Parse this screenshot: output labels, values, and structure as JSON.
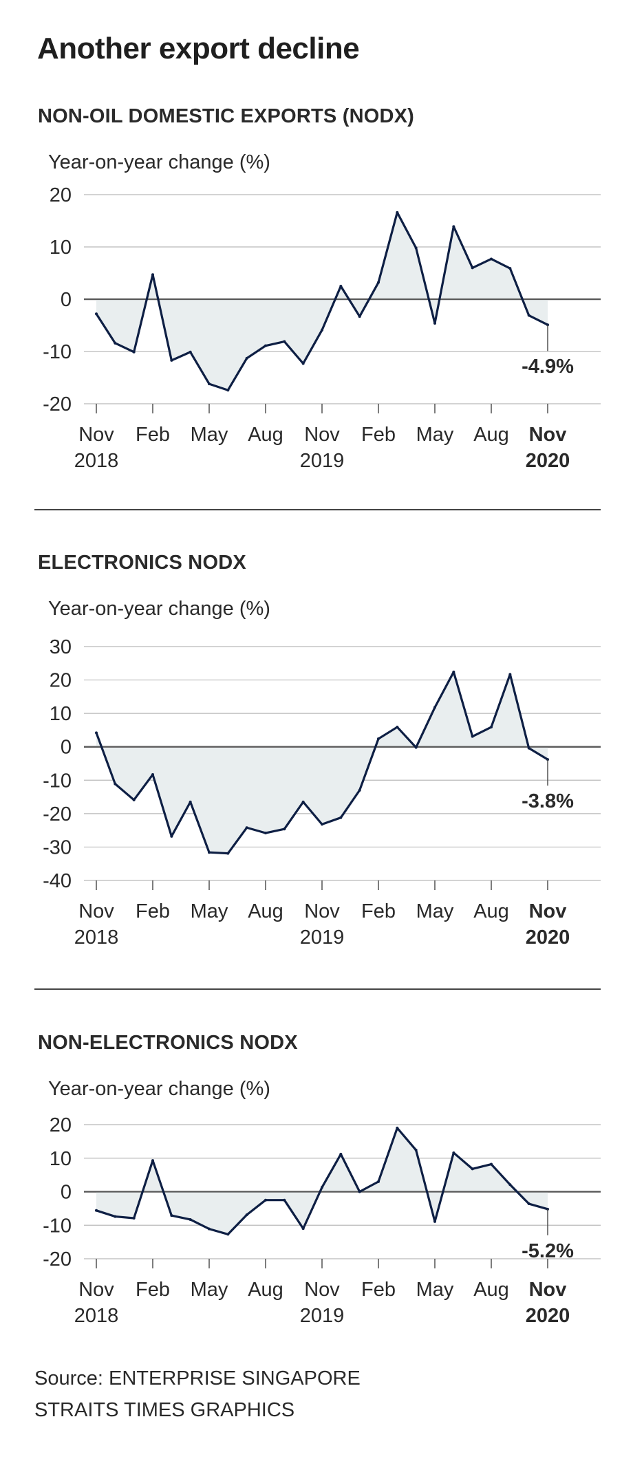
{
  "title": "Another export decline",
  "source_line1": "Source: ENTERPRISE SINGAPORE",
  "source_line2": "STRAITS TIMES GRAPHICS",
  "colors": {
    "line": "#0e1f44",
    "fill": "#e9eeef",
    "grid": "#b9b9b9",
    "zero": "#5a5a5a"
  },
  "chart_data": [
    {
      "type": "area",
      "title": "NON-OIL DOMESTIC EXPORTS (NODX)",
      "ylabel": "Year-on-year change (%)",
      "ylim": [
        -20,
        20
      ],
      "yticks": [
        20,
        10,
        0,
        -10,
        -20
      ],
      "xticks": [
        {
          "month": "Nov",
          "year": "2018",
          "bold": false
        },
        {
          "month": "Feb",
          "year": "",
          "bold": false
        },
        {
          "month": "May",
          "year": "",
          "bold": false
        },
        {
          "month": "Aug",
          "year": "",
          "bold": false
        },
        {
          "month": "Nov",
          "year": "2019",
          "bold": false
        },
        {
          "month": "Feb",
          "year": "",
          "bold": false
        },
        {
          "month": "May",
          "year": "",
          "bold": false
        },
        {
          "month": "Aug",
          "year": "",
          "bold": false
        },
        {
          "month": "Nov",
          "year": "2020",
          "bold": true
        }
      ],
      "x": [
        "Nov 2018",
        "Dec 2018",
        "Jan 2019",
        "Feb 2019",
        "Mar 2019",
        "Apr 2019",
        "May 2019",
        "Jun 2019",
        "Jul 2019",
        "Aug 2019",
        "Sep 2019",
        "Oct 2019",
        "Nov 2019",
        "Dec 2019",
        "Jan 2020",
        "Feb 2020",
        "Mar 2020",
        "Apr 2020",
        "May 2020",
        "Jun 2020",
        "Jul 2020",
        "Aug 2020",
        "Sep 2020",
        "Oct 2020",
        "Nov 2020"
      ],
      "values": [
        -2.8,
        -8.4,
        -10.1,
        4.7,
        -11.7,
        -10.1,
        -16.2,
        -17.4,
        -11.3,
        -8.9,
        -8.1,
        -12.3,
        -5.9,
        2.5,
        -3.3,
        3.2,
        16.6,
        9.8,
        -4.6,
        13.9,
        6.0,
        7.7,
        5.9,
        -3.1,
        -4.9
      ],
      "annotation": "-4.9%"
    },
    {
      "type": "area",
      "title": "ELECTRONICS NODX",
      "ylabel": "Year-on-year change (%)",
      "ylim": [
        -40,
        30
      ],
      "yticks": [
        30,
        20,
        10,
        0,
        -10,
        -20,
        -30,
        -40
      ],
      "xticks": [
        {
          "month": "Nov",
          "year": "2018",
          "bold": false
        },
        {
          "month": "Feb",
          "year": "",
          "bold": false
        },
        {
          "month": "May",
          "year": "",
          "bold": false
        },
        {
          "month": "Aug",
          "year": "",
          "bold": false
        },
        {
          "month": "Nov",
          "year": "2019",
          "bold": false
        },
        {
          "month": "Feb",
          "year": "",
          "bold": false
        },
        {
          "month": "May",
          "year": "",
          "bold": false
        },
        {
          "month": "Aug",
          "year": "",
          "bold": false
        },
        {
          "month": "Nov",
          "year": "2020",
          "bold": true
        }
      ],
      "x": [
        "Nov 2018",
        "Dec 2018",
        "Jan 2019",
        "Feb 2019",
        "Mar 2019",
        "Apr 2019",
        "May 2019",
        "Jun 2019",
        "Jul 2019",
        "Aug 2019",
        "Sep 2019",
        "Oct 2019",
        "Nov 2019",
        "Dec 2019",
        "Jan 2020",
        "Feb 2020",
        "Mar 2020",
        "Apr 2020",
        "May 2020",
        "Jun 2020",
        "Jul 2020",
        "Aug 2020",
        "Sep 2020",
        "Oct 2020",
        "Nov 2020"
      ],
      "values": [
        4.2,
        -11.1,
        -15.9,
        -8.3,
        -26.8,
        -16.5,
        -31.6,
        -31.9,
        -24.2,
        -25.8,
        -24.6,
        -16.5,
        -23.2,
        -21.2,
        -13.0,
        2.4,
        5.9,
        -0.2,
        11.8,
        22.4,
        3.1,
        5.9,
        21.7,
        -0.4,
        -3.8
      ],
      "annotation": "-3.8%"
    },
    {
      "type": "area",
      "title": "NON-ELECTRONICS NODX",
      "ylabel": "Year-on-year change (%)",
      "ylim": [
        -20,
        20
      ],
      "yticks": [
        20,
        10,
        0,
        -10,
        -20
      ],
      "xticks": [
        {
          "month": "Nov",
          "year": "2018",
          "bold": false
        },
        {
          "month": "Feb",
          "year": "",
          "bold": false
        },
        {
          "month": "May",
          "year": "",
          "bold": false
        },
        {
          "month": "Aug",
          "year": "",
          "bold": false
        },
        {
          "month": "Nov",
          "year": "2019",
          "bold": false
        },
        {
          "month": "Feb",
          "year": "",
          "bold": false
        },
        {
          "month": "May",
          "year": "",
          "bold": false
        },
        {
          "month": "Aug",
          "year": "",
          "bold": false
        },
        {
          "month": "Nov",
          "year": "2020",
          "bold": true
        }
      ],
      "x": [
        "Nov 2018",
        "Dec 2018",
        "Jan 2019",
        "Feb 2019",
        "Mar 2019",
        "Apr 2019",
        "May 2019",
        "Jun 2019",
        "Jul 2019",
        "Aug 2019",
        "Sep 2019",
        "Oct 2019",
        "Nov 2019",
        "Dec 2019",
        "Jan 2020",
        "Feb 2020",
        "Mar 2020",
        "Apr 2020",
        "May 2020",
        "Jun 2020",
        "Jul 2020",
        "Aug 2020",
        "Sep 2020",
        "Oct 2020",
        "Nov 2020"
      ],
      "values": [
        -5.6,
        -7.4,
        -7.9,
        9.3,
        -7.1,
        -8.3,
        -11.1,
        -12.7,
        -6.9,
        -2.5,
        -2.5,
        -11.0,
        1.3,
        11.2,
        0.0,
        3.0,
        19.0,
        12.4,
        -8.9,
        11.6,
        6.8,
        8.2,
        2.1,
        -3.6,
        -5.2
      ],
      "annotation": "-5.2%"
    }
  ]
}
